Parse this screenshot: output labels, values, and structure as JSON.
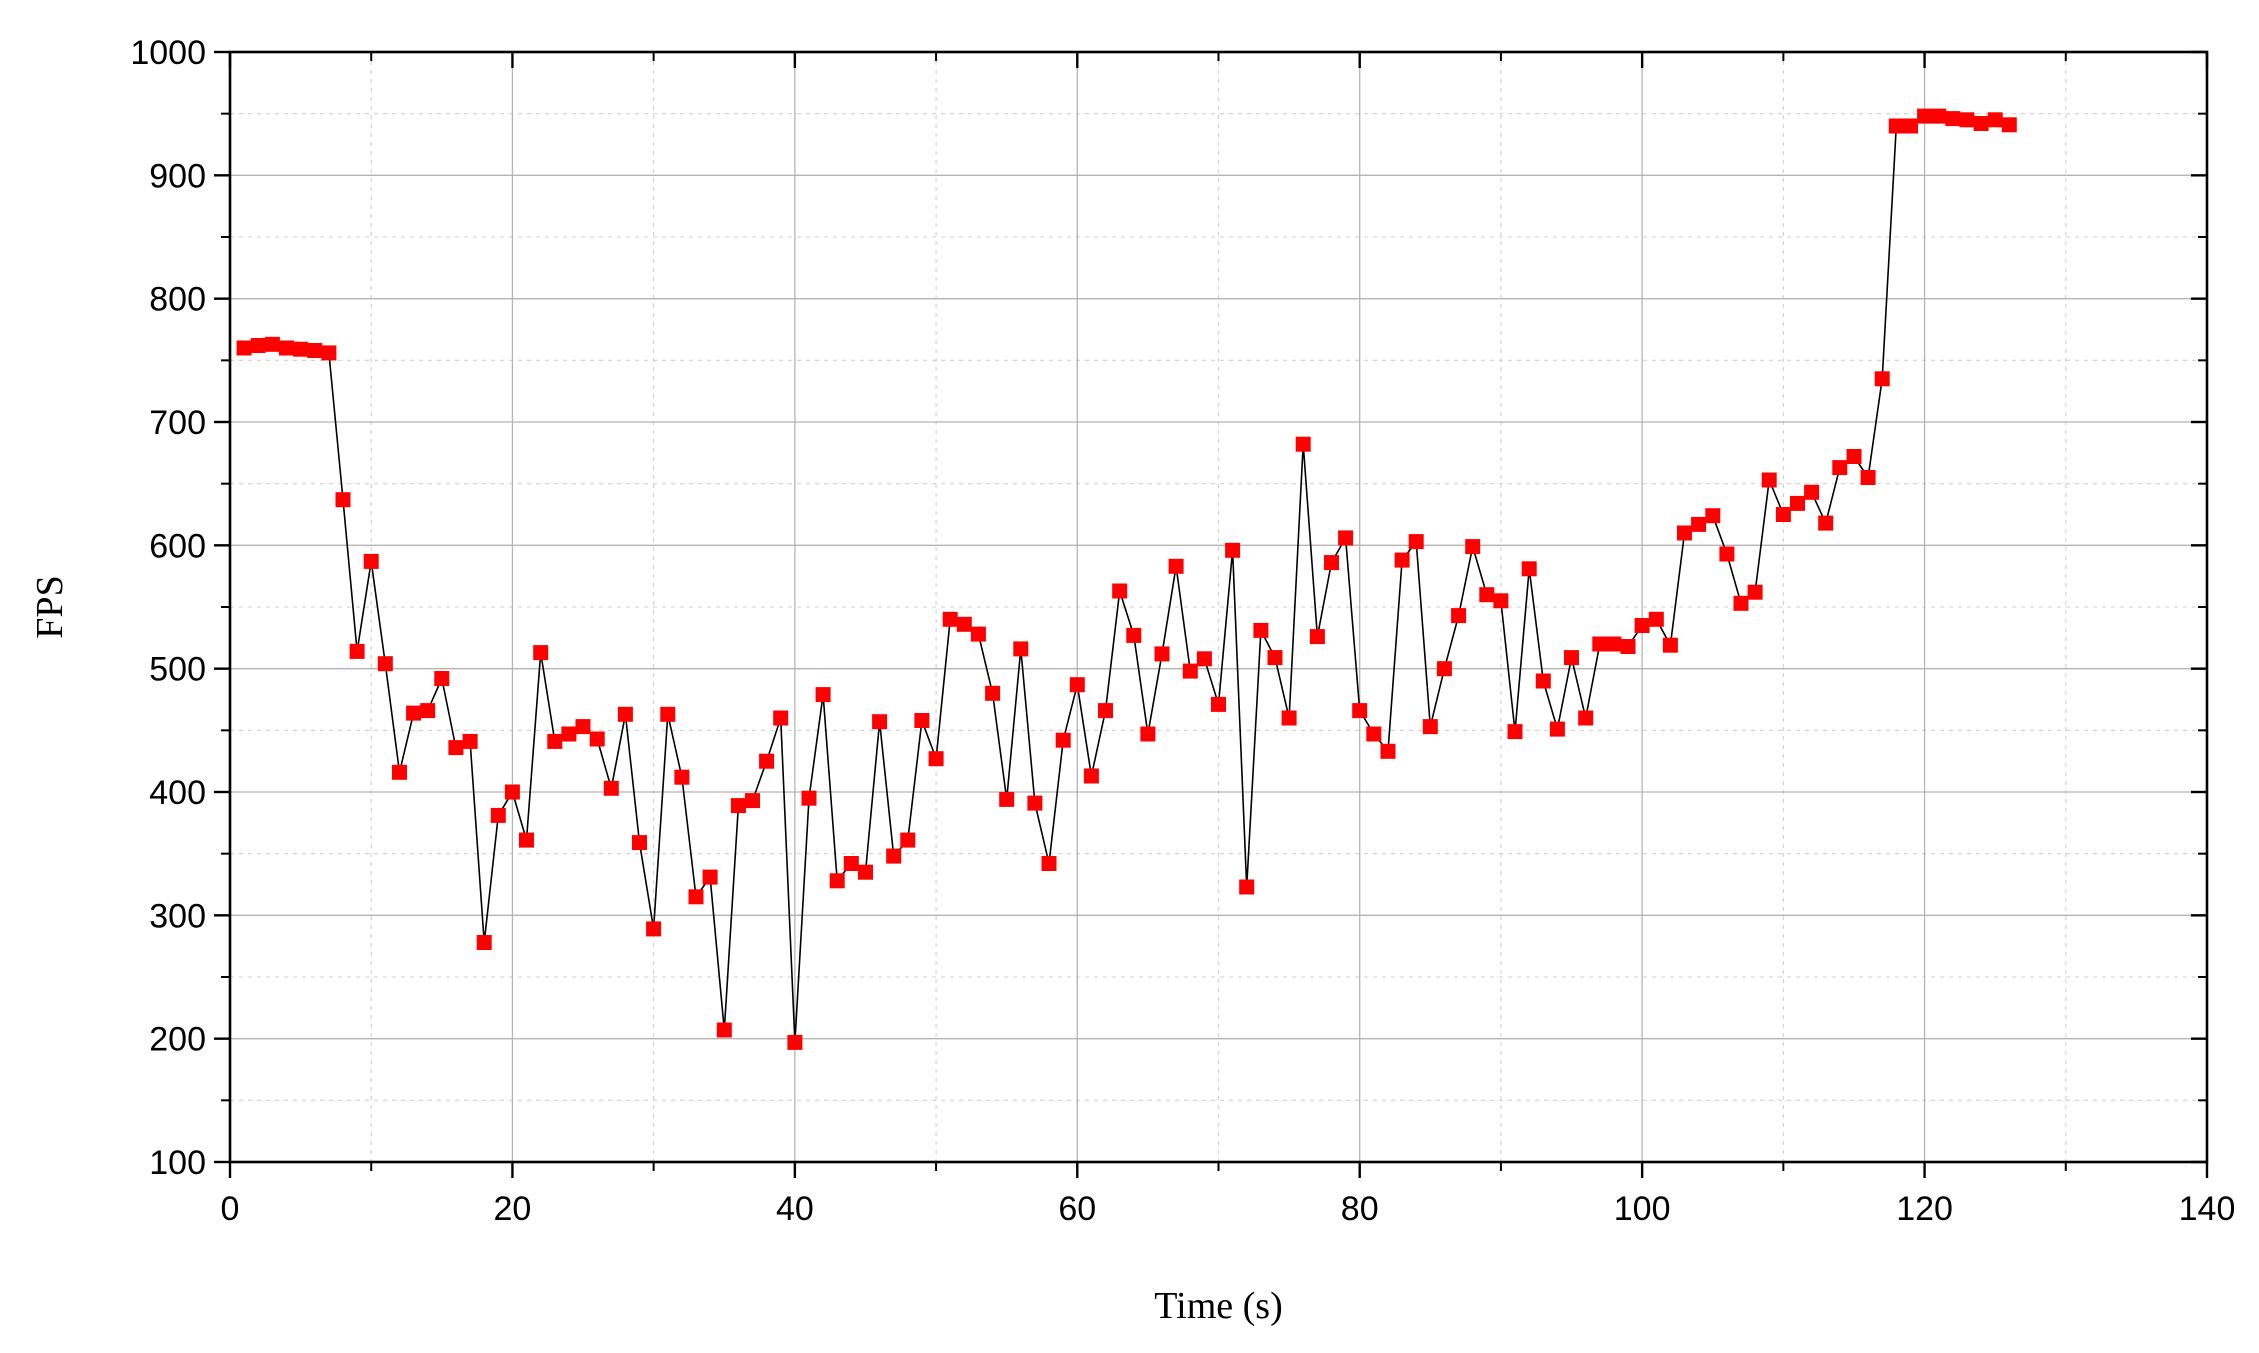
{
  "chart_data": {
    "type": "line",
    "title": "",
    "xlabel": "Time (s)",
    "ylabel": "FPS",
    "xlim": [
      0,
      140
    ],
    "ylim": [
      100,
      1000
    ],
    "x_ticks": [
      0,
      20,
      40,
      60,
      80,
      100,
      120,
      140
    ],
    "y_ticks": [
      100,
      200,
      300,
      400,
      500,
      600,
      700,
      800,
      900,
      1000
    ],
    "grid": true,
    "legend": "none",
    "line_color": "#000000",
    "marker_color": "#ff0000",
    "marker": "square",
    "series": [
      {
        "x": [
          1,
          2,
          3,
          4,
          5,
          6,
          7,
          8,
          9,
          10,
          11,
          12,
          13,
          14,
          15,
          16,
          17,
          18,
          19,
          20,
          21,
          22,
          23,
          24,
          25,
          26,
          27,
          28,
          29,
          30,
          31,
          32,
          33,
          34,
          35,
          36,
          37,
          38,
          39,
          40,
          41,
          42,
          43,
          44,
          45,
          46,
          47,
          48,
          49,
          50,
          51,
          52,
          53,
          54,
          55,
          56,
          57,
          58,
          59,
          60,
          61,
          62,
          63,
          64,
          65,
          66,
          67,
          68,
          69,
          70,
          71,
          72,
          73,
          74,
          75,
          76,
          77,
          78,
          79,
          80,
          81,
          82,
          83,
          84,
          85,
          86,
          87,
          88,
          89,
          90,
          91,
          92,
          93,
          94,
          95,
          96,
          97,
          98,
          99,
          100,
          101,
          102,
          103,
          104,
          105,
          106,
          107,
          108,
          109,
          110,
          111,
          112,
          113,
          114,
          115,
          116,
          117,
          118,
          119,
          120,
          121,
          122,
          123,
          124,
          125,
          126
        ],
        "y": [
          760,
          762,
          763,
          760,
          759,
          758,
          756,
          637,
          514,
          587,
          504,
          416,
          464,
          466,
          492,
          436,
          441,
          278,
          381,
          400,
          361,
          513,
          441,
          447,
          453,
          443,
          403,
          463,
          359,
          289,
          463,
          412,
          315,
          331,
          207,
          389,
          393,
          425,
          460,
          197,
          395,
          479,
          328,
          342,
          335,
          457,
          348,
          361,
          458,
          427,
          540,
          536,
          528,
          480,
          394,
          516,
          391,
          342,
          442,
          487,
          413,
          466,
          563,
          527,
          447,
          512,
          583,
          498,
          508,
          471,
          596,
          323,
          531,
          509,
          460,
          682,
          526,
          586,
          606,
          466,
          447,
          433,
          588,
          603,
          453,
          500,
          543,
          599,
          560,
          555,
          449,
          581,
          490,
          451,
          509,
          460,
          520,
          520,
          518,
          535,
          540,
          519,
          610,
          617,
          624,
          593,
          553,
          562,
          653,
          625,
          634,
          643,
          618,
          663,
          672,
          655,
          735,
          940,
          940,
          948,
          948,
          946,
          945,
          942,
          945,
          941
        ]
      }
    ]
  }
}
